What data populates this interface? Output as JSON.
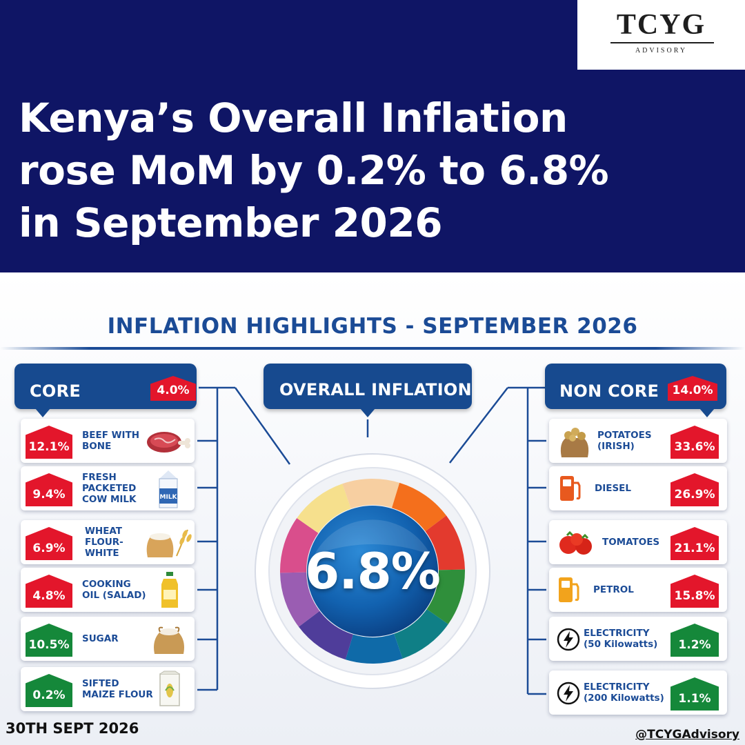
{
  "logo": {
    "name": "TCYG",
    "subtitle": "ADVISORY"
  },
  "headline": {
    "line1": "Kenya’s Overall Inflation",
    "line2": "rose MoM by 0.2% to 6.8%",
    "line3": "in September 2026"
  },
  "section_title": "INFLATION HIGHLIGHTS - SEPTEMBER 2026",
  "core": {
    "label": "CORE",
    "value": "4.0%",
    "items": [
      {
        "pct": "12.1%",
        "direction": "up",
        "label_lines": [
          "BEEF WITH",
          "BONE"
        ],
        "icon": "beef-icon"
      },
      {
        "pct": "9.4%",
        "direction": "up",
        "label_lines": [
          "FRESH",
          "PACKETED",
          "COW MILK"
        ],
        "icon": "milk-carton-icon",
        "icon_text": "MILK"
      },
      {
        "pct": "6.9%",
        "direction": "up",
        "label_lines": [
          "WHEAT",
          "FLOUR-",
          "WHITE"
        ],
        "icon": "flour-sack-icon"
      },
      {
        "pct": "4.8%",
        "direction": "up",
        "label_lines": [
          "COOKING",
          "OIL (SALAD)"
        ],
        "icon": "oil-bottle-icon"
      },
      {
        "pct": "10.5%",
        "direction": "down",
        "label_lines": [
          "SUGAR"
        ],
        "icon": "sugar-sack-icon"
      },
      {
        "pct": "0.2%",
        "direction": "down",
        "label_lines": [
          "SIFTED",
          "MAIZE FLOUR"
        ],
        "icon": "maize-flour-bag-icon"
      }
    ]
  },
  "overall": {
    "label": "OVERALL INFLATION",
    "value": "6.8%"
  },
  "noncore": {
    "label": "NON CORE",
    "value": "14.0%",
    "items": [
      {
        "pct": "33.6%",
        "direction": "up",
        "label_lines": [
          "POTATOES",
          "(IRISH)"
        ],
        "icon": "potato-sack-icon"
      },
      {
        "pct": "26.9%",
        "direction": "up",
        "label_lines": [
          "DIESEL"
        ],
        "icon": "fuel-pump-icon"
      },
      {
        "pct": "21.1%",
        "direction": "up",
        "label_lines": [
          "TOMATOES"
        ],
        "icon": "tomato-icon"
      },
      {
        "pct": "15.8%",
        "direction": "up",
        "label_lines": [
          "PETROL"
        ],
        "icon": "fuel-pump-icon"
      },
      {
        "pct": "1.2%",
        "direction": "down",
        "label_lines": [
          "ELECTRICITY",
          "(50 Kilowatts)"
        ],
        "icon": "lightning-icon"
      },
      {
        "pct": "1.1%",
        "direction": "down",
        "label_lines": [
          "ELECTRICITY",
          "(200 Kilowatts)"
        ],
        "icon": "lightning-icon"
      }
    ]
  },
  "colors": {
    "navy": "#0f1565",
    "blue": "#174a8f",
    "increase": "#e3162b",
    "decrease": "#15883a"
  },
  "footer": {
    "date": "30TH SEPT 2026",
    "handle": "@TCYGAdvisory"
  }
}
